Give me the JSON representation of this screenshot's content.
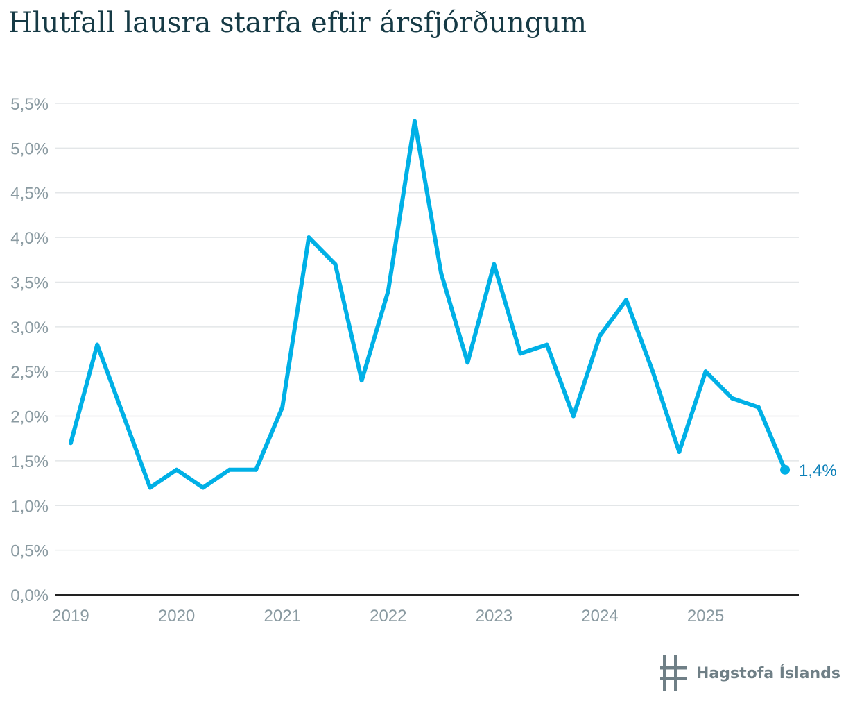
{
  "title": "Hlutfall lausra starfa eftir ársfjórðungum",
  "brand": {
    "name": "Hagstofa Íslands",
    "logo_icon": "hagstofa-logo-icon"
  },
  "colors": {
    "line": "#00b0e6",
    "title": "#163a45",
    "tick": "#8a9aa1",
    "grid": "#e3e6e8",
    "axis": "#222222",
    "end_label": "#0a7fb8"
  },
  "chart_data": {
    "type": "line",
    "title": "Hlutfall lausra starfa eftir ársfjórðungum",
    "xlabel": "",
    "ylabel": "",
    "x_tick_labels": [
      "2019",
      "2020",
      "2021",
      "2022",
      "2023",
      "2024",
      "2025"
    ],
    "y_tick_labels": [
      "0,0%",
      "0,5%",
      "1,0%",
      "1,5%",
      "2,0%",
      "2,5%",
      "3,0%",
      "3,5%",
      "4,0%",
      "4,5%",
      "5,0%",
      "5,5%"
    ],
    "ylim": [
      0,
      5.5
    ],
    "grid": true,
    "legend": "none",
    "end_label": "1,4%",
    "series": [
      {
        "x": [
          "2019 Q1",
          "2019 Q2",
          "2019 Q3",
          "2019 Q4",
          "2020 Q1",
          "2020 Q2",
          "2020 Q3",
          "2020 Q4",
          "2021 Q1",
          "2021 Q2",
          "2021 Q3",
          "2021 Q4",
          "2022 Q1",
          "2022 Q2",
          "2022 Q3",
          "2022 Q4",
          "2023 Q1",
          "2023 Q2",
          "2023 Q3",
          "2023 Q4",
          "2024 Q1",
          "2024 Q2",
          "2024 Q3",
          "2024 Q4",
          "2025 Q1",
          "2025 Q2",
          "2025 Q3",
          "2025 Q4"
        ],
        "values": [
          1.7,
          2.8,
          2.0,
          1.2,
          1.4,
          1.2,
          1.4,
          1.4,
          2.1,
          4.0,
          3.7,
          2.4,
          3.4,
          5.3,
          3.6,
          2.6,
          3.7,
          2.7,
          2.8,
          2.0,
          2.9,
          3.3,
          2.5,
          1.6,
          2.5,
          2.2,
          2.1,
          1.4
        ]
      }
    ]
  }
}
